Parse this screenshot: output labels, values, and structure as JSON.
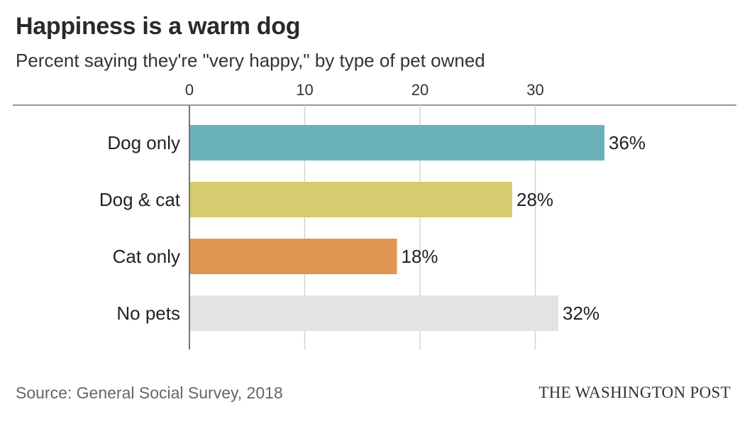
{
  "header": {
    "title": "Happiness is a warm dog",
    "subtitle": "Percent saying they're \"very happy,\" by type of pet owned"
  },
  "footer": {
    "source": "Source: General Social Survey, 2018",
    "brand": "THE WASHINGTON POST"
  },
  "chart_data": {
    "type": "bar",
    "orientation": "horizontal",
    "title": "Happiness is a warm dog",
    "subtitle": "Percent saying they're \"very happy,\" by type of pet owned",
    "xlabel": "",
    "ylabel": "",
    "xlim": [
      0,
      40
    ],
    "xticks": [
      0,
      10,
      20,
      30
    ],
    "grid": true,
    "categories": [
      "Dog only",
      "Dog & cat",
      "Cat only",
      "No pets"
    ],
    "values": [
      36,
      28,
      18,
      32
    ],
    "value_labels": [
      "36%",
      "28%",
      "18%",
      "32%"
    ],
    "colors": [
      "#6ab2b9",
      "#d6cb6e",
      "#df9450",
      "#e3e3e3"
    ]
  }
}
